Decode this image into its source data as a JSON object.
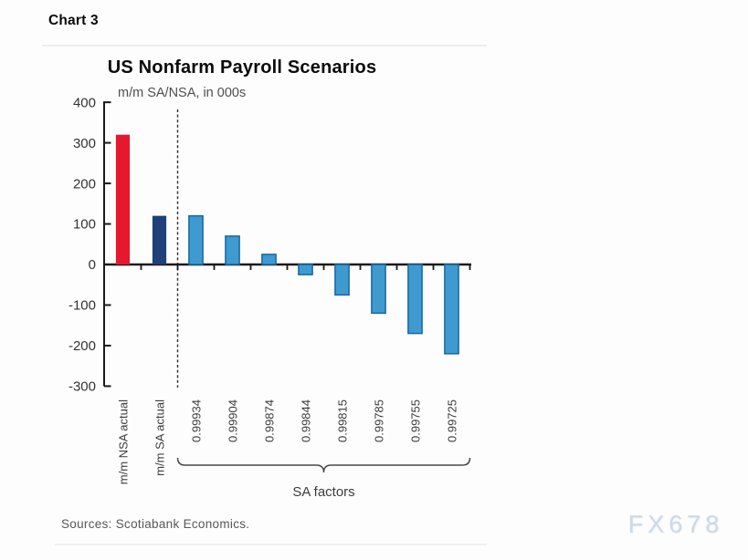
{
  "page": {
    "kicker": "Chart 3",
    "sources_note": "Sources: Scotiabank Economics.",
    "watermark": "FX678"
  },
  "chart_data": {
    "type": "bar",
    "title": "US Nonfarm Payroll Scenarios",
    "subtitle": "m/m SA/NSA, in 000s",
    "categories": [
      "m/m NSA actual",
      "m/m SA actual",
      "0.99934",
      "0.99904",
      "0.99874",
      "0.99844",
      "0.99815",
      "0.99785",
      "0.99755",
      "0.99725"
    ],
    "values": [
      320,
      120,
      120,
      70,
      25,
      -25,
      -75,
      -120,
      -170,
      -220
    ],
    "bar_colors": [
      "#e6182e",
      "#1f4078",
      "#3f9ad0",
      "#3f9ad0",
      "#3f9ad0",
      "#3f9ad0",
      "#3f9ad0",
      "#3f9ad0",
      "#3f9ad0",
      "#3f9ad0"
    ],
    "bar_stroke_colors": [
      "none",
      "none",
      "#16689f",
      "#16689f",
      "#16689f",
      "#16689f",
      "#16689f",
      "#16689f",
      "#16689f",
      "#16689f"
    ],
    "xlabel": "",
    "ylabel": "",
    "ylim": [
      -300,
      400
    ],
    "yticks": [
      400,
      300,
      200,
      100,
      0,
      -100,
      -200,
      -300
    ],
    "grid": false,
    "legend_position": "none",
    "separator_after_index": 1,
    "group_bracket": {
      "label": "SA factors",
      "start_index": 2,
      "end_index": 9
    },
    "axis_color": "#1a1a1a",
    "tick_label_color": "#333333",
    "category_label_color": "#3c3c3c"
  }
}
